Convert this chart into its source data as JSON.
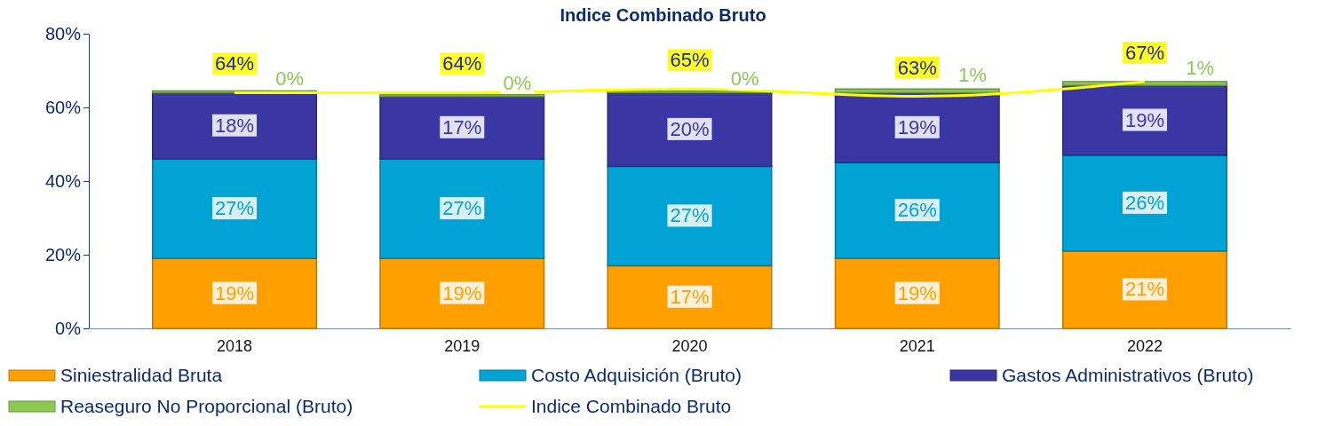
{
  "chart_data": {
    "type": "bar",
    "title": "Indice Combinado Bruto",
    "stacked": true,
    "categories": [
      "2018",
      "2019",
      "2020",
      "2021",
      "2022"
    ],
    "series": [
      {
        "name": "Siniestralidad Bruta",
        "color": "#ffa000",
        "values": [
          19,
          19,
          17,
          19,
          21
        ],
        "value_labels": [
          "19%",
          "19%",
          "17%",
          "19%",
          "21%"
        ]
      },
      {
        "name": "Costo Adquisición (Bruto)",
        "color": "#00a3d4",
        "values": [
          27,
          27,
          27,
          26,
          26
        ],
        "value_labels": [
          "27%",
          "27%",
          "27%",
          "26%",
          "26%"
        ]
      },
      {
        "name": "Gastos Administrativos (Bruto)",
        "color": "#3a37a5",
        "values": [
          18,
          17,
          20,
          19,
          19
        ],
        "value_labels": [
          "18%",
          "17%",
          "20%",
          "19%",
          "19%"
        ]
      },
      {
        "name": "Reaseguro No Proporcional (Bruto)",
        "color": "#8cc852",
        "values": [
          0,
          0,
          0,
          1,
          1
        ],
        "value_labels": [
          "0%",
          "0%",
          "0%",
          "1%",
          "1%"
        ]
      },
      {
        "name": "Indice Combinado Bruto",
        "type": "line",
        "color": "#ffff00",
        "values": [
          64,
          64,
          65,
          63,
          67
        ],
        "value_labels": [
          "64%",
          "64%",
          "65%",
          "63%",
          "67%"
        ]
      }
    ],
    "ylim": [
      0,
      80
    ],
    "yticks": [
      {
        "value": 0,
        "label": "0%"
      },
      {
        "value": 20,
        "label": "20%"
      },
      {
        "value": 40,
        "label": "40%"
      },
      {
        "value": 60,
        "label": "60%"
      },
      {
        "value": 80,
        "label": "80%"
      }
    ],
    "grid": false,
    "legend": "bottom"
  }
}
